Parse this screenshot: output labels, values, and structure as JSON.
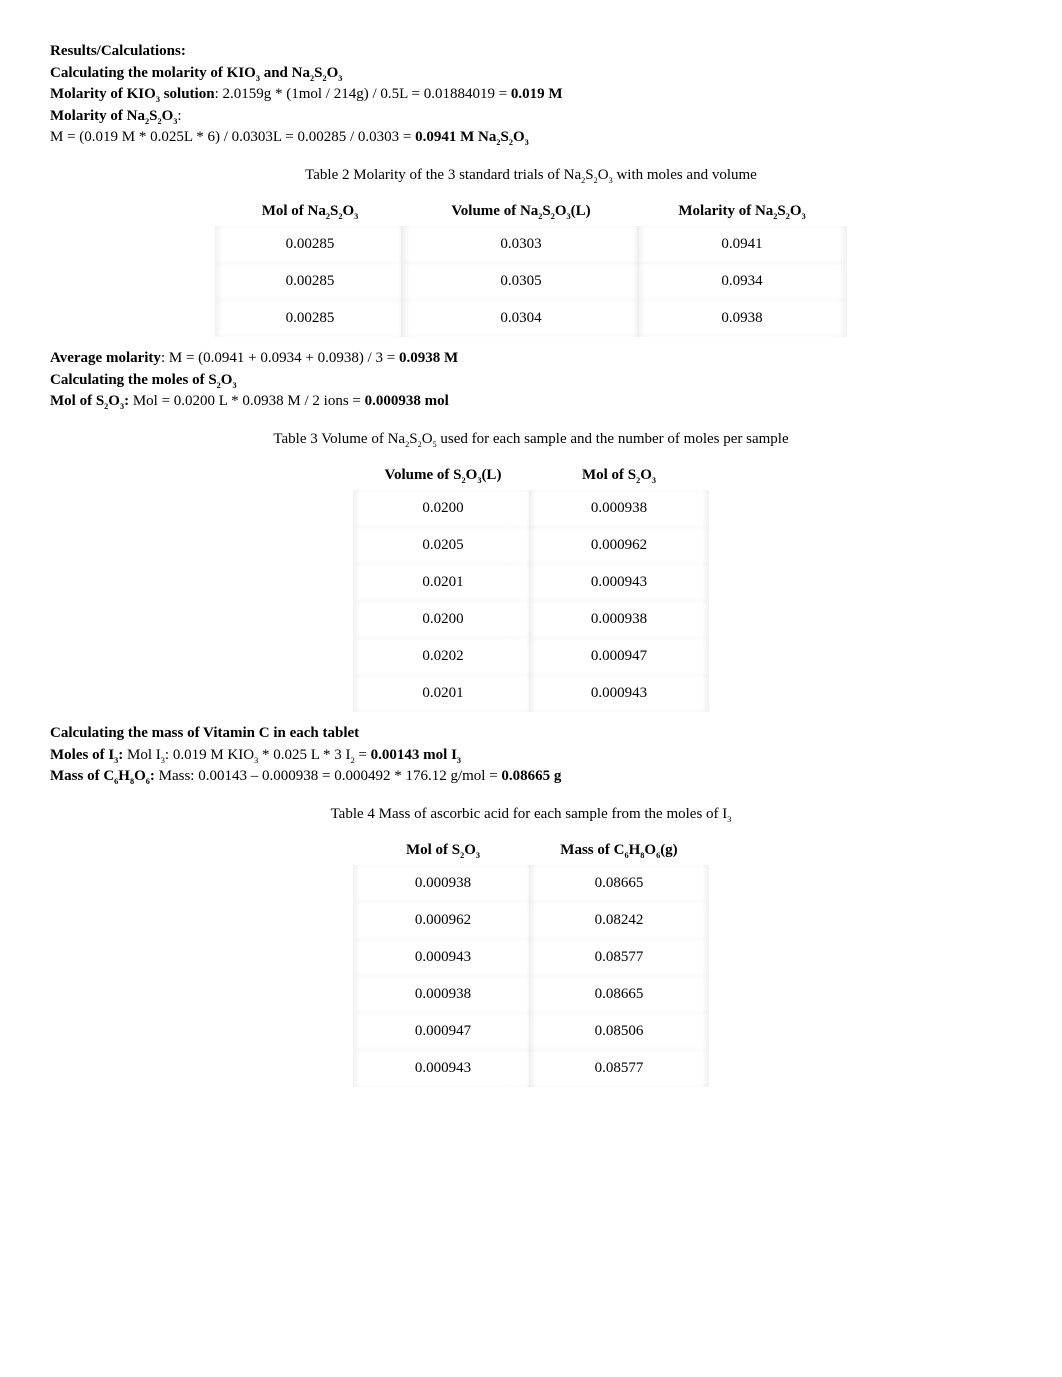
{
  "header": {
    "results_label": "Results/Calculations:",
    "calc_molarity_label": "Calculating the molarity of KIO₃ and Na₂S₂O₃",
    "molarity_kio3_label": "Molarity of KIO₃ solution",
    "molarity_kio3_calc": ": 2.0159g * (1mol / 214g) / 0.5L = 0.01884019 = ",
    "molarity_kio3_result": "0.019 M",
    "molarity_na_label": "Molarity of Na₂S₂O₃:",
    "molarity_na_calc": "M = (0.019 M * 0.025L * 6) / 0.0303L = 0.00285 / 0.0303 = ",
    "molarity_na_result": "0.0941 M Na₂S₂O₃"
  },
  "table2": {
    "caption": "Table 2 Molarity of the 3 standard trials of Na₂S₂O₃ with moles and volume",
    "col1": "Mol of Na₂S₂O₃",
    "col2": "Volume of Na₂S₂O₃(L)",
    "col3": "Molarity of Na₂S₂O₃",
    "rows": [
      {
        "c1": "0.00285",
        "c2": "0.0303",
        "c3": "0.0941"
      },
      {
        "c1": "0.00285",
        "c2": "0.0305",
        "c3": "0.0934"
      },
      {
        "c1": "0.00285",
        "c2": "0.0304",
        "c3": "0.0938"
      }
    ]
  },
  "avg": {
    "avg_label": "Average molarity",
    "avg_calc": ": M = (0.0941 + 0.0934 + 0.0938) / 3 = ",
    "avg_result": "0.0938 M",
    "calc_moles_label": "Calculating the moles of S₂O₃",
    "mol_s2o3_label": "Mol of S₂O₃:",
    "mol_s2o3_calc": " Mol = 0.0200 L * 0.0938 M / 2 ions = ",
    "mol_s2o3_result": "0.000938 mol"
  },
  "table3": {
    "caption": "Table 3 Volume of Na₂S₂O₅ used for each sample and the number of moles per sample",
    "col1": "Volume of S₂O₃(L)",
    "col2": "Mol of S₂O₃",
    "rows": [
      {
        "c1": "0.0200",
        "c2": "0.000938"
      },
      {
        "c1": "0.0205",
        "c2": "0.000962"
      },
      {
        "c1": "0.0201",
        "c2": "0.000943"
      },
      {
        "c1": "0.0200",
        "c2": "0.000938"
      },
      {
        "c1": "0.0202",
        "c2": "0.000947"
      },
      {
        "c1": "0.0201",
        "c2": "0.000943"
      }
    ]
  },
  "vitc": {
    "title": "Calculating the mass of Vitamin C in each tablet",
    "moles_i3_label": "Moles of I₃:",
    "moles_i3_calc": "  Mol I₃: 0.019 M KIO₃ * 0.025 L * 3 I₂ = ",
    "moles_i3_result": "0.00143 mol I₃",
    "mass_label": "Mass of C₆H₈O₆:",
    "mass_calc": " Mass: 0.00143 – 0.000938 = 0.000492 * 176.12 g/mol = ",
    "mass_result": "0.08665 g"
  },
  "table4": {
    "caption": "Table 4 Mass of ascorbic acid for each sample from the moles of I₃",
    "col1": "Mol of S₂O₃",
    "col2": "Mass of C₆H₈O₆(g)",
    "rows": [
      {
        "c1": "0.000938",
        "c2": "0.08665"
      },
      {
        "c1": "0.000962",
        "c2": "0.08242"
      },
      {
        "c1": "0.000943",
        "c2": "0.08577"
      },
      {
        "c1": "0.000938",
        "c2": "0.08665"
      },
      {
        "c1": "0.000947",
        "c2": "0.08506"
      },
      {
        "c1": "0.000943",
        "c2": "0.08577"
      }
    ]
  }
}
